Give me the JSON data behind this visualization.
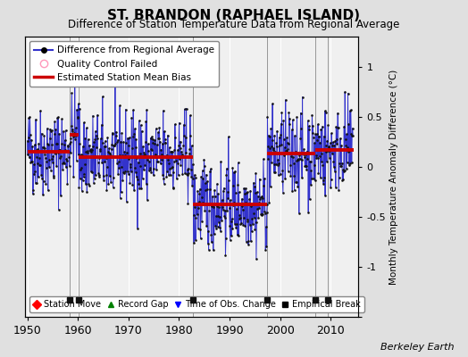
{
  "title": "ST. BRANDON (RAPHAEL ISLAND)",
  "subtitle": "Difference of Station Temperature Data from Regional Average",
  "ylabel": "Monthly Temperature Anomaly Difference (°C)",
  "credit": "Berkeley Earth",
  "xlim": [
    1949.5,
    2015.5
  ],
  "ylim": [
    -1.5,
    1.3
  ],
  "yticks": [
    -1.5,
    -1,
    -0.5,
    0,
    0.5,
    1
  ],
  "xticks": [
    1950,
    1960,
    1970,
    1980,
    1990,
    2000,
    2010
  ],
  "background_color": "#e0e0e0",
  "plot_bg_color": "#f0f0f0",
  "grid_color": "#ffffff",
  "seed": 42,
  "segments": [
    {
      "start": 1950.0,
      "end": 1958.3,
      "bias": 0.15
    },
    {
      "start": 1958.3,
      "end": 1960.2,
      "bias": 0.32
    },
    {
      "start": 1960.2,
      "end": 1982.7,
      "bias": 0.1
    },
    {
      "start": 1982.7,
      "end": 1997.5,
      "bias": -0.38
    },
    {
      "start": 1997.5,
      "end": 2007.0,
      "bias": 0.13
    },
    {
      "start": 2007.0,
      "end": 2014.5,
      "bias": 0.17
    }
  ],
  "breaks": [
    1958.3,
    1960.2,
    1982.7,
    1997.5,
    2007.0,
    2009.5
  ],
  "noise_std": 0.22,
  "line_color": "#3333cc",
  "dot_color": "#111111",
  "bias_color": "#cc0000",
  "break_color": "#888888",
  "break_marker_color": "#111111",
  "break_y": -1.33
}
